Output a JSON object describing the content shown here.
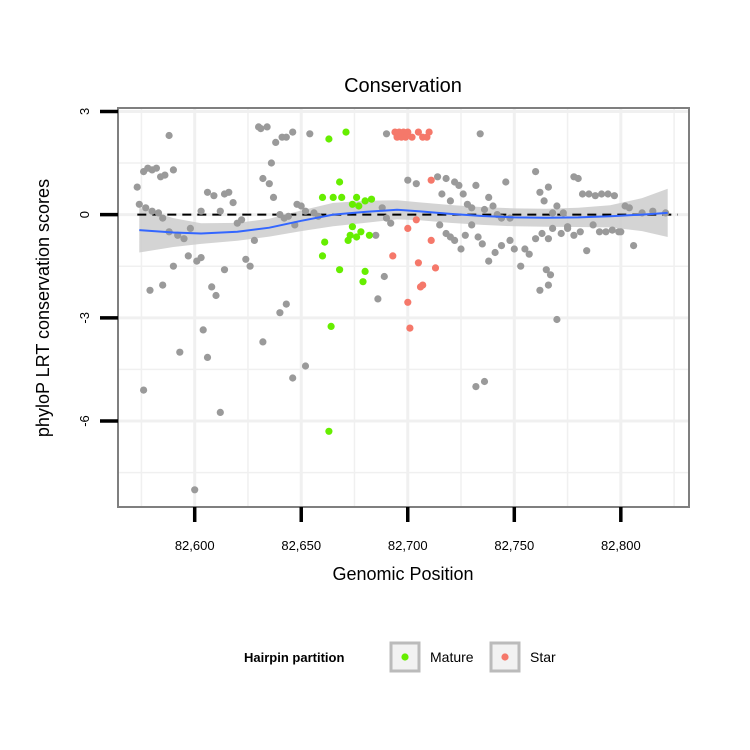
{
  "chart_data": {
    "type": "scatter",
    "title": "Conservation",
    "xlabel": "Genomic Position",
    "ylabel": "phyloP LRT conservation scores",
    "xlim": [
      82564,
      82832
    ],
    "ylim": [
      -8.5,
      3.1
    ],
    "x_ticks": [
      82600,
      82650,
      82700,
      82750,
      82800
    ],
    "x_tick_labels": [
      "82,600",
      "82,650",
      "82,700",
      "82,750",
      "82,800"
    ],
    "y_ticks": [
      3,
      0,
      -3,
      -6
    ],
    "y_tick_labels": [
      "3",
      "0",
      "-3",
      "-6"
    ],
    "reference_line": {
      "y": 0,
      "style": "dashed"
    },
    "colors": {
      "background": "#ffffff",
      "grid": "#f0f0f0",
      "other": "#9a9a9a",
      "mature": "#66ee00",
      "star": "#f5786a",
      "smooth": "#3366ff",
      "ribbon": "#cccccc"
    },
    "legend": {
      "title": "Hairpin partition",
      "position": "bottom",
      "entries": [
        {
          "label": "Mature",
          "color": "#66ee00"
        },
        {
          "label": "Star",
          "color": "#f5786a"
        }
      ]
    },
    "smooth": {
      "x": [
        82574,
        82590,
        82603,
        82620,
        82635,
        82650,
        82665,
        82680,
        82695,
        82705,
        82720,
        82735,
        82750,
        82765,
        82780,
        82795,
        82810,
        82822
      ],
      "y": [
        -0.45,
        -0.52,
        -0.55,
        -0.5,
        -0.38,
        -0.18,
        0.0,
        0.08,
        0.14,
        0.1,
        0.02,
        -0.04,
        -0.08,
        -0.09,
        -0.08,
        -0.05,
        0.0,
        0.05
      ],
      "se": [
        0.65,
        0.42,
        0.3,
        0.26,
        0.26,
        0.3,
        0.34,
        0.32,
        0.28,
        0.26,
        0.26,
        0.26,
        0.26,
        0.26,
        0.28,
        0.32,
        0.48,
        0.7
      ]
    },
    "series": [
      {
        "name": "Mature",
        "points": [
          [
            82663,
            2.2
          ],
          [
            82671,
            2.4
          ],
          [
            82668,
            0.95
          ],
          [
            82665,
            0.5
          ],
          [
            82660,
            0.5
          ],
          [
            82674,
            0.3
          ],
          [
            82676,
            0.5
          ],
          [
            82680,
            0.4
          ],
          [
            82683,
            0.45
          ],
          [
            82669,
            0.5
          ],
          [
            82677,
            0.25
          ],
          [
            82674,
            -0.35
          ],
          [
            82678,
            -0.5
          ],
          [
            82682,
            -0.6
          ],
          [
            82673,
            -0.6
          ],
          [
            82676,
            -0.65
          ],
          [
            82672,
            -0.75
          ],
          [
            82661,
            -0.8
          ],
          [
            82660,
            -1.2
          ],
          [
            82668,
            -1.6
          ],
          [
            82680,
            -1.65
          ],
          [
            82679,
            -1.95
          ],
          [
            82664,
            -3.25
          ],
          [
            82663,
            -6.3
          ]
        ]
      },
      {
        "name": "Star",
        "points": [
          [
            82694,
            2.4
          ],
          [
            82696,
            2.4
          ],
          [
            82698,
            2.4
          ],
          [
            82700,
            2.4
          ],
          [
            82705,
            2.4
          ],
          [
            82710,
            2.4
          ],
          [
            82695,
            2.25
          ],
          [
            82697,
            2.25
          ],
          [
            82699,
            2.25
          ],
          [
            82702,
            2.25
          ],
          [
            82707,
            2.25
          ],
          [
            82709,
            2.25
          ],
          [
            82711,
            1.0
          ],
          [
            82704,
            -0.15
          ],
          [
            82700,
            -0.4
          ],
          [
            82711,
            -0.75
          ],
          [
            82693,
            -1.2
          ],
          [
            82705,
            -1.4
          ],
          [
            82713,
            -1.55
          ],
          [
            82706,
            -2.1
          ],
          [
            82707,
            -2.05
          ],
          [
            82700,
            -2.55
          ],
          [
            82701,
            -3.3
          ]
        ]
      },
      {
        "name": "Other",
        "points": [
          [
            82573,
            0.8
          ],
          [
            82576,
            1.25
          ],
          [
            82578,
            1.35
          ],
          [
            82580,
            1.3
          ],
          [
            82582,
            1.35
          ],
          [
            82584,
            1.1
          ],
          [
            82586,
            1.15
          ],
          [
            82588,
            2.3
          ],
          [
            82590,
            1.3
          ],
          [
            82574,
            0.3
          ],
          [
            82577,
            0.2
          ],
          [
            82580,
            0.1
          ],
          [
            82583,
            0.05
          ],
          [
            82585,
            -0.1
          ],
          [
            82588,
            -0.5
          ],
          [
            82592,
            -0.6
          ],
          [
            82595,
            -0.7
          ],
          [
            82598,
            -0.4
          ],
          [
            82576,
            -5.1
          ],
          [
            82579,
            -2.2
          ],
          [
            82585,
            -2.05
          ],
          [
            82590,
            -1.5
          ],
          [
            82593,
            -4.0
          ],
          [
            82597,
            -1.2
          ],
          [
            82601,
            -1.35
          ],
          [
            82603,
            -1.25
          ],
          [
            82600,
            -8.0
          ],
          [
            82604,
            -3.35
          ],
          [
            82606,
            -4.15
          ],
          [
            82608,
            -2.1
          ],
          [
            82612,
            -5.75
          ],
          [
            82610,
            -2.35
          ],
          [
            82614,
            -1.6
          ],
          [
            82603,
            0.1
          ],
          [
            82606,
            0.65
          ],
          [
            82609,
            0.55
          ],
          [
            82612,
            0.1
          ],
          [
            82614,
            0.6
          ],
          [
            82616,
            0.65
          ],
          [
            82618,
            0.35
          ],
          [
            82620,
            -0.25
          ],
          [
            82622,
            -0.15
          ],
          [
            82624,
            -1.3
          ],
          [
            82626,
            -1.5
          ],
          [
            82628,
            -0.75
          ],
          [
            82630,
            2.55
          ],
          [
            82631,
            2.5
          ],
          [
            82634,
            2.55
          ],
          [
            82636,
            1.5
          ],
          [
            82638,
            2.1
          ],
          [
            82641,
            2.25
          ],
          [
            82643,
            2.25
          ],
          [
            82646,
            2.4
          ],
          [
            82648,
            0.3
          ],
          [
            82632,
            1.05
          ],
          [
            82635,
            0.9
          ],
          [
            82637,
            0.5
          ],
          [
            82640,
            0.0
          ],
          [
            82642,
            -0.1
          ],
          [
            82644,
            -0.05
          ],
          [
            82647,
            -0.3
          ],
          [
            82632,
            -3.7
          ],
          [
            82640,
            -2.85
          ],
          [
            82643,
            -2.6
          ],
          [
            82646,
            -4.75
          ],
          [
            82652,
            -4.4
          ],
          [
            82654,
            2.35
          ],
          [
            82650,
            0.25
          ],
          [
            82652,
            0.1
          ],
          [
            82656,
            0.05
          ],
          [
            82658,
            -0.05
          ],
          [
            82690,
            2.35
          ],
          [
            82695,
            2.3
          ],
          [
            82700,
            1.0
          ],
          [
            82704,
            0.9
          ],
          [
            82688,
            0.2
          ],
          [
            82690,
            -0.1
          ],
          [
            82692,
            -0.25
          ],
          [
            82685,
            -0.6
          ],
          [
            82689,
            -1.8
          ],
          [
            82686,
            -2.45
          ],
          [
            82714,
            1.1
          ],
          [
            82718,
            1.05
          ],
          [
            82722,
            0.95
          ],
          [
            82724,
            0.85
          ],
          [
            82716,
            0.6
          ],
          [
            82720,
            0.4
          ],
          [
            82726,
            0.6
          ],
          [
            82728,
            0.3
          ],
          [
            82730,
            0.2
          ],
          [
            82734,
            2.35
          ],
          [
            82732,
            0.85
          ],
          [
            82736,
            0.15
          ],
          [
            82738,
            0.5
          ],
          [
            82740,
            0.25
          ],
          [
            82742,
            0.0
          ],
          [
            82744,
            -0.1
          ],
          [
            82746,
            0.95
          ],
          [
            82748,
            -0.1
          ],
          [
            82715,
            -0.3
          ],
          [
            82718,
            -0.55
          ],
          [
            82720,
            -0.65
          ],
          [
            82722,
            -0.75
          ],
          [
            82725,
            -1.0
          ],
          [
            82727,
            -0.6
          ],
          [
            82730,
            -0.3
          ],
          [
            82733,
            -0.65
          ],
          [
            82735,
            -0.85
          ],
          [
            82738,
            -1.35
          ],
          [
            82741,
            -1.1
          ],
          [
            82744,
            -0.9
          ],
          [
            82748,
            -0.75
          ],
          [
            82750,
            -1.0
          ],
          [
            82753,
            -1.5
          ],
          [
            82755,
            -1.0
          ],
          [
            82757,
            -1.15
          ],
          [
            82760,
            1.25
          ],
          [
            82762,
            0.65
          ],
          [
            82764,
            0.4
          ],
          [
            82766,
            0.8
          ],
          [
            82768,
            0.05
          ],
          [
            82770,
            0.25
          ],
          [
            82773,
            0.05
          ],
          [
            82775,
            -0.4
          ],
          [
            82778,
            1.1
          ],
          [
            82780,
            1.05
          ],
          [
            82782,
            0.6
          ],
          [
            82785,
            0.6
          ],
          [
            82788,
            0.55
          ],
          [
            82791,
            0.6
          ],
          [
            82794,
            0.6
          ],
          [
            82797,
            0.55
          ],
          [
            82799,
            -0.5
          ],
          [
            82802,
            0.25
          ],
          [
            82804,
            0.2
          ],
          [
            82806,
            -0.9
          ],
          [
            82760,
            -0.7
          ],
          [
            82763,
            -0.55
          ],
          [
            82766,
            -0.7
          ],
          [
            82768,
            -0.4
          ],
          [
            82772,
            -0.55
          ],
          [
            82775,
            -0.35
          ],
          [
            82778,
            -0.6
          ],
          [
            82781,
            -0.5
          ],
          [
            82784,
            -1.05
          ],
          [
            82787,
            -0.3
          ],
          [
            82790,
            -0.5
          ],
          [
            82793,
            -0.5
          ],
          [
            82796,
            -0.45
          ],
          [
            82800,
            -0.5
          ],
          [
            82765,
            -1.6
          ],
          [
            82767,
            -1.75
          ],
          [
            82766,
            -2.05
          ],
          [
            82762,
            -2.2
          ],
          [
            82770,
            -3.05
          ],
          [
            82732,
            -5.0
          ],
          [
            82736,
            -4.85
          ],
          [
            82821,
            0.05
          ],
          [
            82815,
            0.1
          ],
          [
            82810,
            0.05
          ]
        ]
      }
    ]
  }
}
